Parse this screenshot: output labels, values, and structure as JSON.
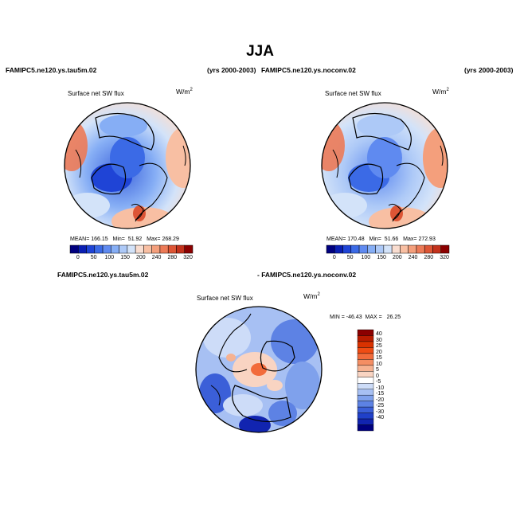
{
  "title": "JJA",
  "panels": {
    "left": {
      "case": "FAMIPC5.ne120.ys.tau5m.02",
      "years": "(yrs 2000-2003)",
      "field": "Surface net SW flux",
      "units": "W/m",
      "units_sup": "2",
      "stats": {
        "mean_label": "MEAN=",
        "mean": "166.15",
        "min_label": "Min=",
        "min": "51.92",
        "max_label": "Max=",
        "max": "268.29"
      }
    },
    "right": {
      "case": "FAMIPC5.ne120.ys.noconv.02",
      "years": "(yrs 2000-2003)",
      "field": "Surface net SW flux",
      "units": "W/m",
      "units_sup": "2",
      "stats": {
        "mean_label": "MEAN=",
        "mean": "170.48",
        "min_label": "Min=",
        "min": "51.66",
        "max_label": "Max=",
        "max": "272.93"
      }
    },
    "diff": {
      "case_a": "FAMIPC5.ne120.ys.tau5m.02",
      "case_b": "- FAMIPC5.ne120.ys.noconv.02",
      "field": "Surface net SW flux",
      "units": "W/m",
      "units_sup": "2",
      "minmax": "MIN = -46.43  MAX =   26.25"
    }
  },
  "colorbar_main": {
    "ticks": [
      "0",
      "50",
      "100",
      "150",
      "200",
      "240",
      "280",
      "320"
    ],
    "colors": [
      "#00007f",
      "#0a1fb3",
      "#1f44d6",
      "#3b6ae6",
      "#5f8af0",
      "#86aef5",
      "#adc9f7",
      "#d3e3f9",
      "#f9ddd0",
      "#f8bfa3",
      "#f49f7c",
      "#ec7a57",
      "#dd5535",
      "#c3321c",
      "#8b0000"
    ]
  },
  "colorbar_diff": {
    "ticks": [
      "40",
      "30",
      "25",
      "20",
      "15",
      "10",
      "5",
      "0",
      "-5",
      "-10",
      "-15",
      "-20",
      "-25",
      "-30",
      "-40"
    ],
    "colors": [
      "#8b0000",
      "#b81c00",
      "#d93200",
      "#ef4c14",
      "#f26b3b",
      "#f48e63",
      "#f6b291",
      "#f9d4c2",
      "#ffffff",
      "#cddcf8",
      "#a7c0f3",
      "#7fa1ec",
      "#5d82e4",
      "#3b5fd8",
      "#2040c9",
      "#1124b0",
      "#00007f"
    ]
  }
}
